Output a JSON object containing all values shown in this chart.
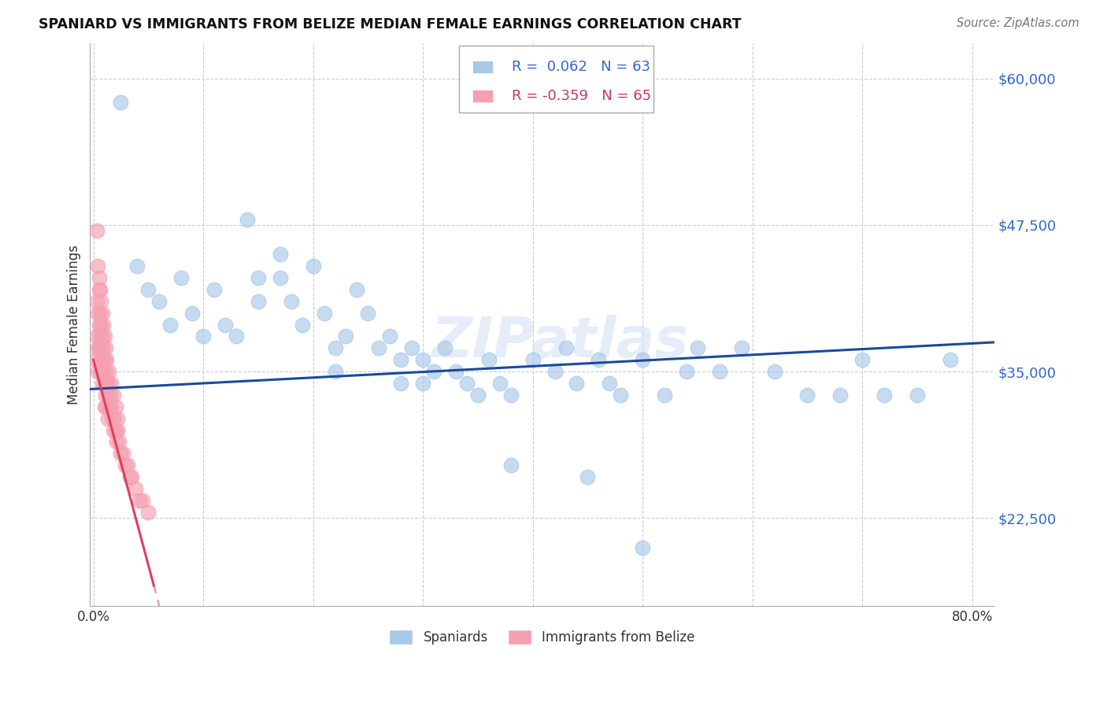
{
  "title": "SPANIARD VS IMMIGRANTS FROM BELIZE MEDIAN FEMALE EARNINGS CORRELATION CHART",
  "source": "Source: ZipAtlas.com",
  "ylabel": "Median Female Earnings",
  "yticks": [
    22500,
    35000,
    47500,
    60000
  ],
  "ytick_labels": [
    "$22,500",
    "$35,000",
    "$47,500",
    "$60,000"
  ],
  "ymin": 15000,
  "ymax": 63000,
  "xmin": -0.003,
  "xmax": 0.82,
  "legend_blue_r": "0.062",
  "legend_blue_n": "63",
  "legend_pink_r": "-0.359",
  "legend_pink_n": "65",
  "legend_label_blue": "Spaniards",
  "legend_label_pink": "Immigrants from Belize",
  "watermark": "ZIPatlas",
  "blue_color": "#A8C8E8",
  "pink_color": "#F4A0B0",
  "line_blue": "#1A4A9A",
  "line_pink": "#E04060",
  "spaniards_x": [
    0.025,
    0.14,
    0.15,
    0.15,
    0.17,
    0.17,
    0.18,
    0.19,
    0.2,
    0.21,
    0.22,
    0.22,
    0.23,
    0.24,
    0.25,
    0.26,
    0.27,
    0.28,
    0.28,
    0.29,
    0.3,
    0.3,
    0.31,
    0.32,
    0.33,
    0.34,
    0.35,
    0.36,
    0.37,
    0.38,
    0.4,
    0.42,
    0.43,
    0.44,
    0.46,
    0.47,
    0.48,
    0.5,
    0.52,
    0.54,
    0.04,
    0.05,
    0.06,
    0.07,
    0.08,
    0.09,
    0.1,
    0.11,
    0.12,
    0.13,
    0.55,
    0.57,
    0.59,
    0.62,
    0.65,
    0.68,
    0.7,
    0.72,
    0.75,
    0.78,
    0.38,
    0.45,
    0.5
  ],
  "spaniards_y": [
    58000,
    48000,
    43000,
    41000,
    45000,
    43000,
    41000,
    39000,
    44000,
    40000,
    37000,
    35000,
    38000,
    42000,
    40000,
    37000,
    38000,
    36000,
    34000,
    37000,
    36000,
    34000,
    35000,
    37000,
    35000,
    34000,
    33000,
    36000,
    34000,
    33000,
    36000,
    35000,
    37000,
    34000,
    36000,
    34000,
    33000,
    36000,
    33000,
    35000,
    44000,
    42000,
    41000,
    39000,
    43000,
    40000,
    38000,
    42000,
    39000,
    38000,
    37000,
    35000,
    37000,
    35000,
    33000,
    33000,
    36000,
    33000,
    33000,
    36000,
    27000,
    26000,
    20000
  ],
  "belize_x": [
    0.002,
    0.003,
    0.003,
    0.004,
    0.004,
    0.004,
    0.005,
    0.005,
    0.005,
    0.006,
    0.006,
    0.006,
    0.007,
    0.007,
    0.007,
    0.008,
    0.008,
    0.008,
    0.009,
    0.009,
    0.01,
    0.01,
    0.01,
    0.011,
    0.011,
    0.012,
    0.012,
    0.013,
    0.013,
    0.014,
    0.014,
    0.015,
    0.016,
    0.017,
    0.018,
    0.019,
    0.02,
    0.021,
    0.022,
    0.023,
    0.025,
    0.027,
    0.029,
    0.031,
    0.033,
    0.035,
    0.038,
    0.042,
    0.045,
    0.05,
    0.003,
    0.004,
    0.005,
    0.006,
    0.007,
    0.008,
    0.009,
    0.01,
    0.011,
    0.012,
    0.014,
    0.016,
    0.018,
    0.02,
    0.022
  ],
  "belize_y": [
    36000,
    41000,
    38000,
    40000,
    37000,
    35000,
    42000,
    39000,
    37000,
    40000,
    38000,
    36000,
    39000,
    37000,
    35000,
    38000,
    36000,
    34000,
    37000,
    35000,
    36000,
    34000,
    32000,
    35000,
    33000,
    34000,
    32000,
    33000,
    31000,
    34000,
    32000,
    33000,
    32000,
    31000,
    30000,
    31000,
    30000,
    29000,
    30000,
    29000,
    28000,
    28000,
    27000,
    27000,
    26000,
    26000,
    25000,
    24000,
    24000,
    23000,
    47000,
    44000,
    43000,
    42000,
    41000,
    40000,
    39000,
    38000,
    37000,
    36000,
    35000,
    34000,
    33000,
    32000,
    31000
  ]
}
